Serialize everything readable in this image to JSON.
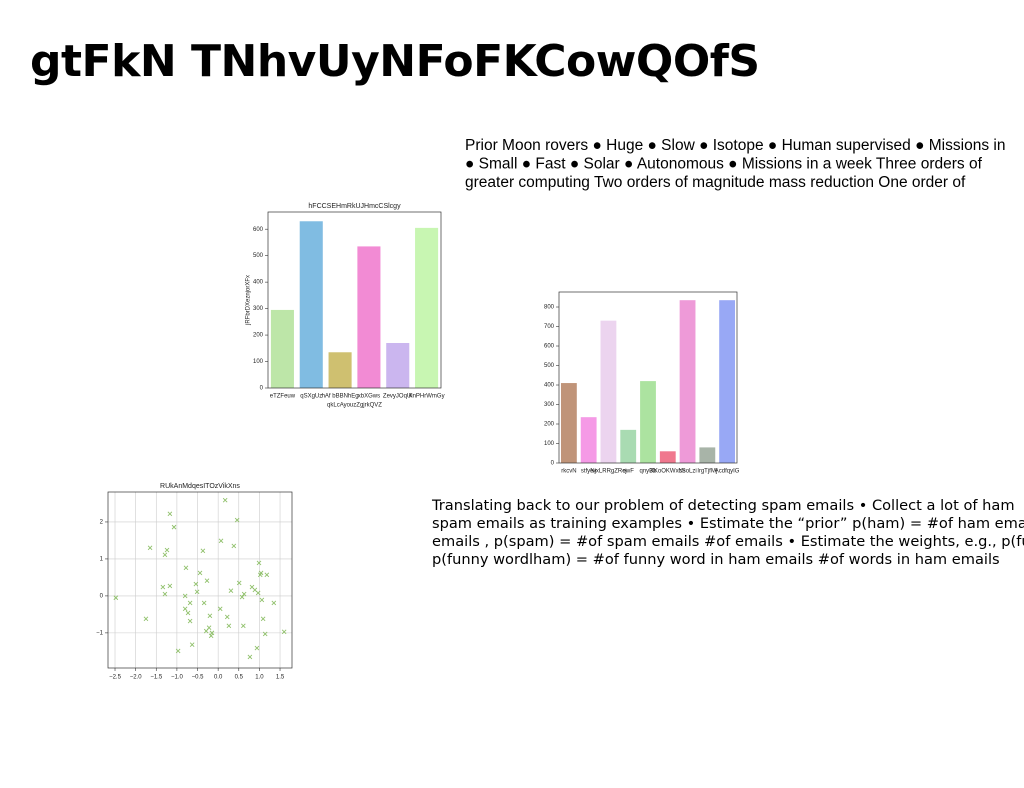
{
  "title": "gtFkN TNhvUyNFoFKCowQOfS",
  "paragraphs": [
    {
      "lines": [
        "Prior Moon rovers ● Huge ● Slow ● Isotope ● Human supervised ● Missions in",
        "● Small ● Fast ● Solar ● Autonomous ● Missions in a week Three orders of",
        "greater computing Two orders of magnitude mass reduction One order of"
      ]
    },
    {
      "lines": [
        "Translating back to our problem of detecting spam emails • Collect a lot of ham",
        "spam emails as training examples • Estimate the “prior” p(ham) = #of ham emails",
        "emails , p(spam) = #of spam emails #of emails • Estimate the weights, e.g., p(funny",
        "p(funny wordlham) = #of funny word in ham emails #of words in ham emails"
      ]
    }
  ],
  "chart_data": [
    {
      "type": "bar",
      "title": "hFCCSEHmRkUJHmcCSlcgy",
      "x_label": "qkLcAyouzZgjrkQVZ",
      "y_label": "jRFbrDXeznjorXFx",
      "categories": [
        "eTZFeuw",
        "qSXgUz",
        "hAf bBBNhEg",
        "xbXGws",
        "ZevyJOqUi",
        "KnPHrWmGy"
      ],
      "values": [
        295,
        630,
        135,
        535,
        170,
        605
      ],
      "colors": [
        "#bde6a8",
        "#80bce2",
        "#cfc070",
        "#f28bd4",
        "#cbb6ef",
        "#c8f6b2"
      ],
      "ylim": [
        0,
        665
      ],
      "yticks": [
        0,
        100,
        200,
        300,
        400,
        500,
        600
      ]
    },
    {
      "type": "bar",
      "categories": [
        "rkcvN",
        "stfyev",
        "NjxLRRgZRcj",
        "ewF",
        "qnyBb",
        "XKoOKWxcS",
        "NsoLzi",
        "lrgTjfMj",
        "AcdfqyIG"
      ],
      "values": [
        410,
        235,
        730,
        170,
        420,
        60,
        835,
        80,
        835
      ],
      "colors": [
        "#c09479",
        "#f59ae6",
        "#ecd4ef",
        "#a9dbb2",
        "#ace3a0",
        "#f0788e",
        "#ee9ad8",
        "#a8b4a8",
        "#98a8f5"
      ],
      "ylim": [
        0,
        877
      ],
      "yticks": [
        0,
        100,
        200,
        300,
        400,
        500,
        600,
        700,
        800
      ]
    },
    {
      "type": "scatter",
      "title": "RUkAnMdqesITOzVikXns",
      "color": "#8fc06a",
      "grid": true,
      "x": [
        -2.48,
        -1.75,
        -1.65,
        -1.29,
        -1.24,
        -1.34,
        -1.29,
        -1.17,
        -1.17,
        -1.07,
        -0.97,
        -0.8,
        -0.78,
        -0.8,
        -0.73,
        -0.68,
        -0.68,
        -0.63,
        -0.54,
        -0.51,
        -0.44,
        -0.37,
        -0.34,
        -0.29,
        -0.22,
        -0.27,
        -0.2,
        -0.17,
        -0.15,
        0.05,
        0.07,
        0.17,
        0.22,
        0.26,
        0.31,
        0.38,
        0.46,
        0.51,
        0.58,
        0.61,
        0.63,
        0.77,
        0.82,
        0.89,
        0.94,
        0.97,
        0.99,
        1.02,
        1.04,
        1.06,
        1.09,
        1.14,
        1.18,
        1.35,
        1.6
      ],
      "y": [
        -0.05,
        -0.62,
        1.3,
        1.11,
        1.24,
        0.24,
        0.05,
        0.27,
        2.22,
        1.86,
        -1.49,
        0.0,
        0.76,
        -0.35,
        -0.46,
        -0.19,
        -0.68,
        -1.32,
        0.32,
        0.11,
        0.62,
        1.22,
        -0.19,
        -0.95,
        -0.86,
        0.41,
        -0.54,
        -1.08,
        -1.0,
        -0.35,
        1.49,
        2.59,
        -0.57,
        -0.81,
        0.14,
        1.35,
        2.05,
        0.35,
        -0.03,
        -0.81,
        0.05,
        -1.65,
        0.24,
        0.16,
        -1.41,
        0.08,
        0.89,
        0.57,
        0.62,
        -0.11,
        -0.62,
        -1.03,
        0.57,
        -0.19,
        -0.97
      ],
      "xlim": [
        -2.67,
        1.79
      ],
      "ylim": [
        -1.95,
        2.81
      ],
      "xticks": [
        {
          "value": -2.5,
          "label": "−2.5"
        },
        {
          "value": -2.0,
          "label": "−2.0"
        },
        {
          "value": -1.5,
          "label": "−1.5"
        },
        {
          "value": -1.0,
          "label": "−1.0"
        },
        {
          "value": -0.5,
          "label": "−0.5"
        },
        {
          "value": 0.0,
          "label": "0.0"
        },
        {
          "value": 0.5,
          "label": "0.5"
        },
        {
          "value": 1.0,
          "label": "1.0"
        },
        {
          "value": 1.5,
          "label": "1.5"
        }
      ],
      "yticks": [
        {
          "value": -1,
          "label": "−1"
        },
        0,
        1,
        2
      ]
    }
  ]
}
